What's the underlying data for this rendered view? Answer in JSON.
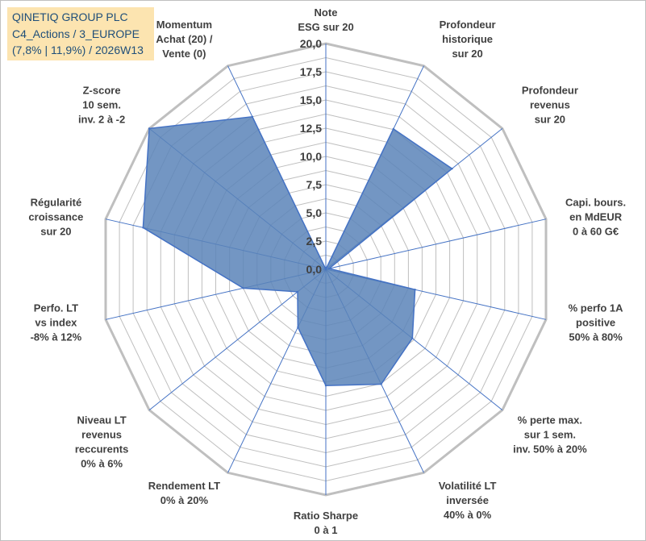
{
  "title": {
    "line1": "QINETIQ GROUP PLC",
    "line2": "C4_Actions / 3_EUROPE",
    "line3": "(7,8% | 11,9%) / 2026W13"
  },
  "colors": {
    "grid": "#bfbfbf",
    "spoke": "#4472c4",
    "fill": "#5b84b8",
    "stroke": "#4472c4"
  },
  "chart_data": {
    "type": "radar",
    "rmax": 20,
    "grid_step": 1.25,
    "tick_labels": [
      "0,0",
      "2,5",
      "5,0",
      "7,5",
      "10,0",
      "12,5",
      "15,0",
      "17,5",
      "20,0"
    ],
    "tick_values": [
      0,
      2.5,
      5,
      7.5,
      10,
      12.5,
      15,
      17.5,
      20
    ],
    "axes": [
      {
        "lines": [
          "Note",
          "ESG sur 20"
        ],
        "value": 0
      },
      {
        "lines": [
          "Profondeur",
          "historique",
          "sur 20"
        ],
        "value": 13.8
      },
      {
        "lines": [
          "Profondeur",
          "revenus",
          "sur 20"
        ],
        "value": 14.3
      },
      {
        "lines": [
          "Capi. bours.",
          "en MdEUR",
          "0 à 60 G€"
        ],
        "value": 0.3
      },
      {
        "lines": [
          "% perfo 1A",
          "positive",
          "50% à 80%"
        ],
        "value": 8.1
      },
      {
        "lines": [
          "% perte max.",
          "sur 1 sem.",
          "inv. 50% à 20%"
        ],
        "value": 9.8
      },
      {
        "lines": [
          "Volatilité LT",
          "inversée",
          "40% à 0%"
        ],
        "value": 11.3
      },
      {
        "lines": [
          "Ratio Sharpe",
          "0 à 1"
        ],
        "value": 10.3
      },
      {
        "lines": [
          "Rendement LT",
          "0% à 20%"
        ],
        "value": 5.7
      },
      {
        "lines": [
          "Niveau LT",
          "revenus",
          "reccurents",
          "0% à 6%"
        ],
        "value": 3.2
      },
      {
        "lines": [
          "Perfo. LT",
          "vs index",
          "-8% à 12%"
        ],
        "value": 7.5
      },
      {
        "lines": [
          "Régularité",
          "croissance",
          "sur 20"
        ],
        "value": 16.6
      },
      {
        "lines": [
          "Z-score",
          "10 sem.",
          "inv. 2 à -2"
        ],
        "value": 20.0
      },
      {
        "lines": [
          "Momentum",
          "Achat (20) /",
          "Vente (0)"
        ],
        "value": 15.0
      }
    ]
  }
}
